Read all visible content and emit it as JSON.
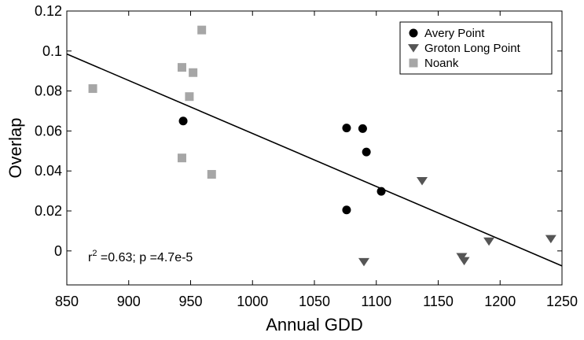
{
  "chart_data": {
    "type": "scatter",
    "xlabel": "Annual GDD",
    "ylabel": "Overlap",
    "xlim": [
      850,
      1250
    ],
    "ylim": [
      -0.017,
      0.12
    ],
    "x_ticks": [
      850,
      900,
      950,
      1000,
      1050,
      1100,
      1150,
      1200,
      1250
    ],
    "y_ticks": [
      0,
      0.02,
      0.04,
      0.06,
      0.08,
      0.1,
      0.12
    ],
    "y_tick_labels": [
      "0",
      "0.02",
      "0.04",
      "0.06",
      "0.08",
      "0.1",
      "0.12"
    ],
    "grid": false,
    "legend_position": "top-right",
    "series": [
      {
        "name": "Avery Point",
        "marker": "circle",
        "color": "#000000",
        "points": [
          {
            "x": 944,
            "y": 0.065
          },
          {
            "x": 1076,
            "y": 0.0615
          },
          {
            "x": 1089,
            "y": 0.0612
          },
          {
            "x": 1092,
            "y": 0.0495
          },
          {
            "x": 1104,
            "y": 0.0298
          },
          {
            "x": 1076,
            "y": 0.0205
          }
        ]
      },
      {
        "name": "Groton Long Point",
        "marker": "triangle-down",
        "color": "#555555",
        "points": [
          {
            "x": 1137,
            "y": 0.035
          },
          {
            "x": 1090,
            "y": -0.0055
          },
          {
            "x": 1169,
            "y": -0.003
          },
          {
            "x": 1171,
            "y": -0.005
          },
          {
            "x": 1191,
            "y": 0.0048
          },
          {
            "x": 1241,
            "y": 0.006
          }
        ]
      },
      {
        "name": "Noank",
        "marker": "square",
        "color": "#a6a6a6",
        "points": [
          {
            "x": 871,
            "y": 0.0812
          },
          {
            "x": 943,
            "y": 0.0918
          },
          {
            "x": 959,
            "y": 0.1105
          },
          {
            "x": 952,
            "y": 0.0892
          },
          {
            "x": 949,
            "y": 0.0772
          },
          {
            "x": 943,
            "y": 0.0465
          },
          {
            "x": 967,
            "y": 0.0383
          }
        ]
      }
    ],
    "fit_line": {
      "x": [
        850,
        1250
      ],
      "y": [
        0.0985,
        -0.0075
      ]
    },
    "annotation": {
      "r_prefix": "r",
      "r_exp": "2",
      "r_value": " =0.63; p =4.7e-5"
    }
  }
}
